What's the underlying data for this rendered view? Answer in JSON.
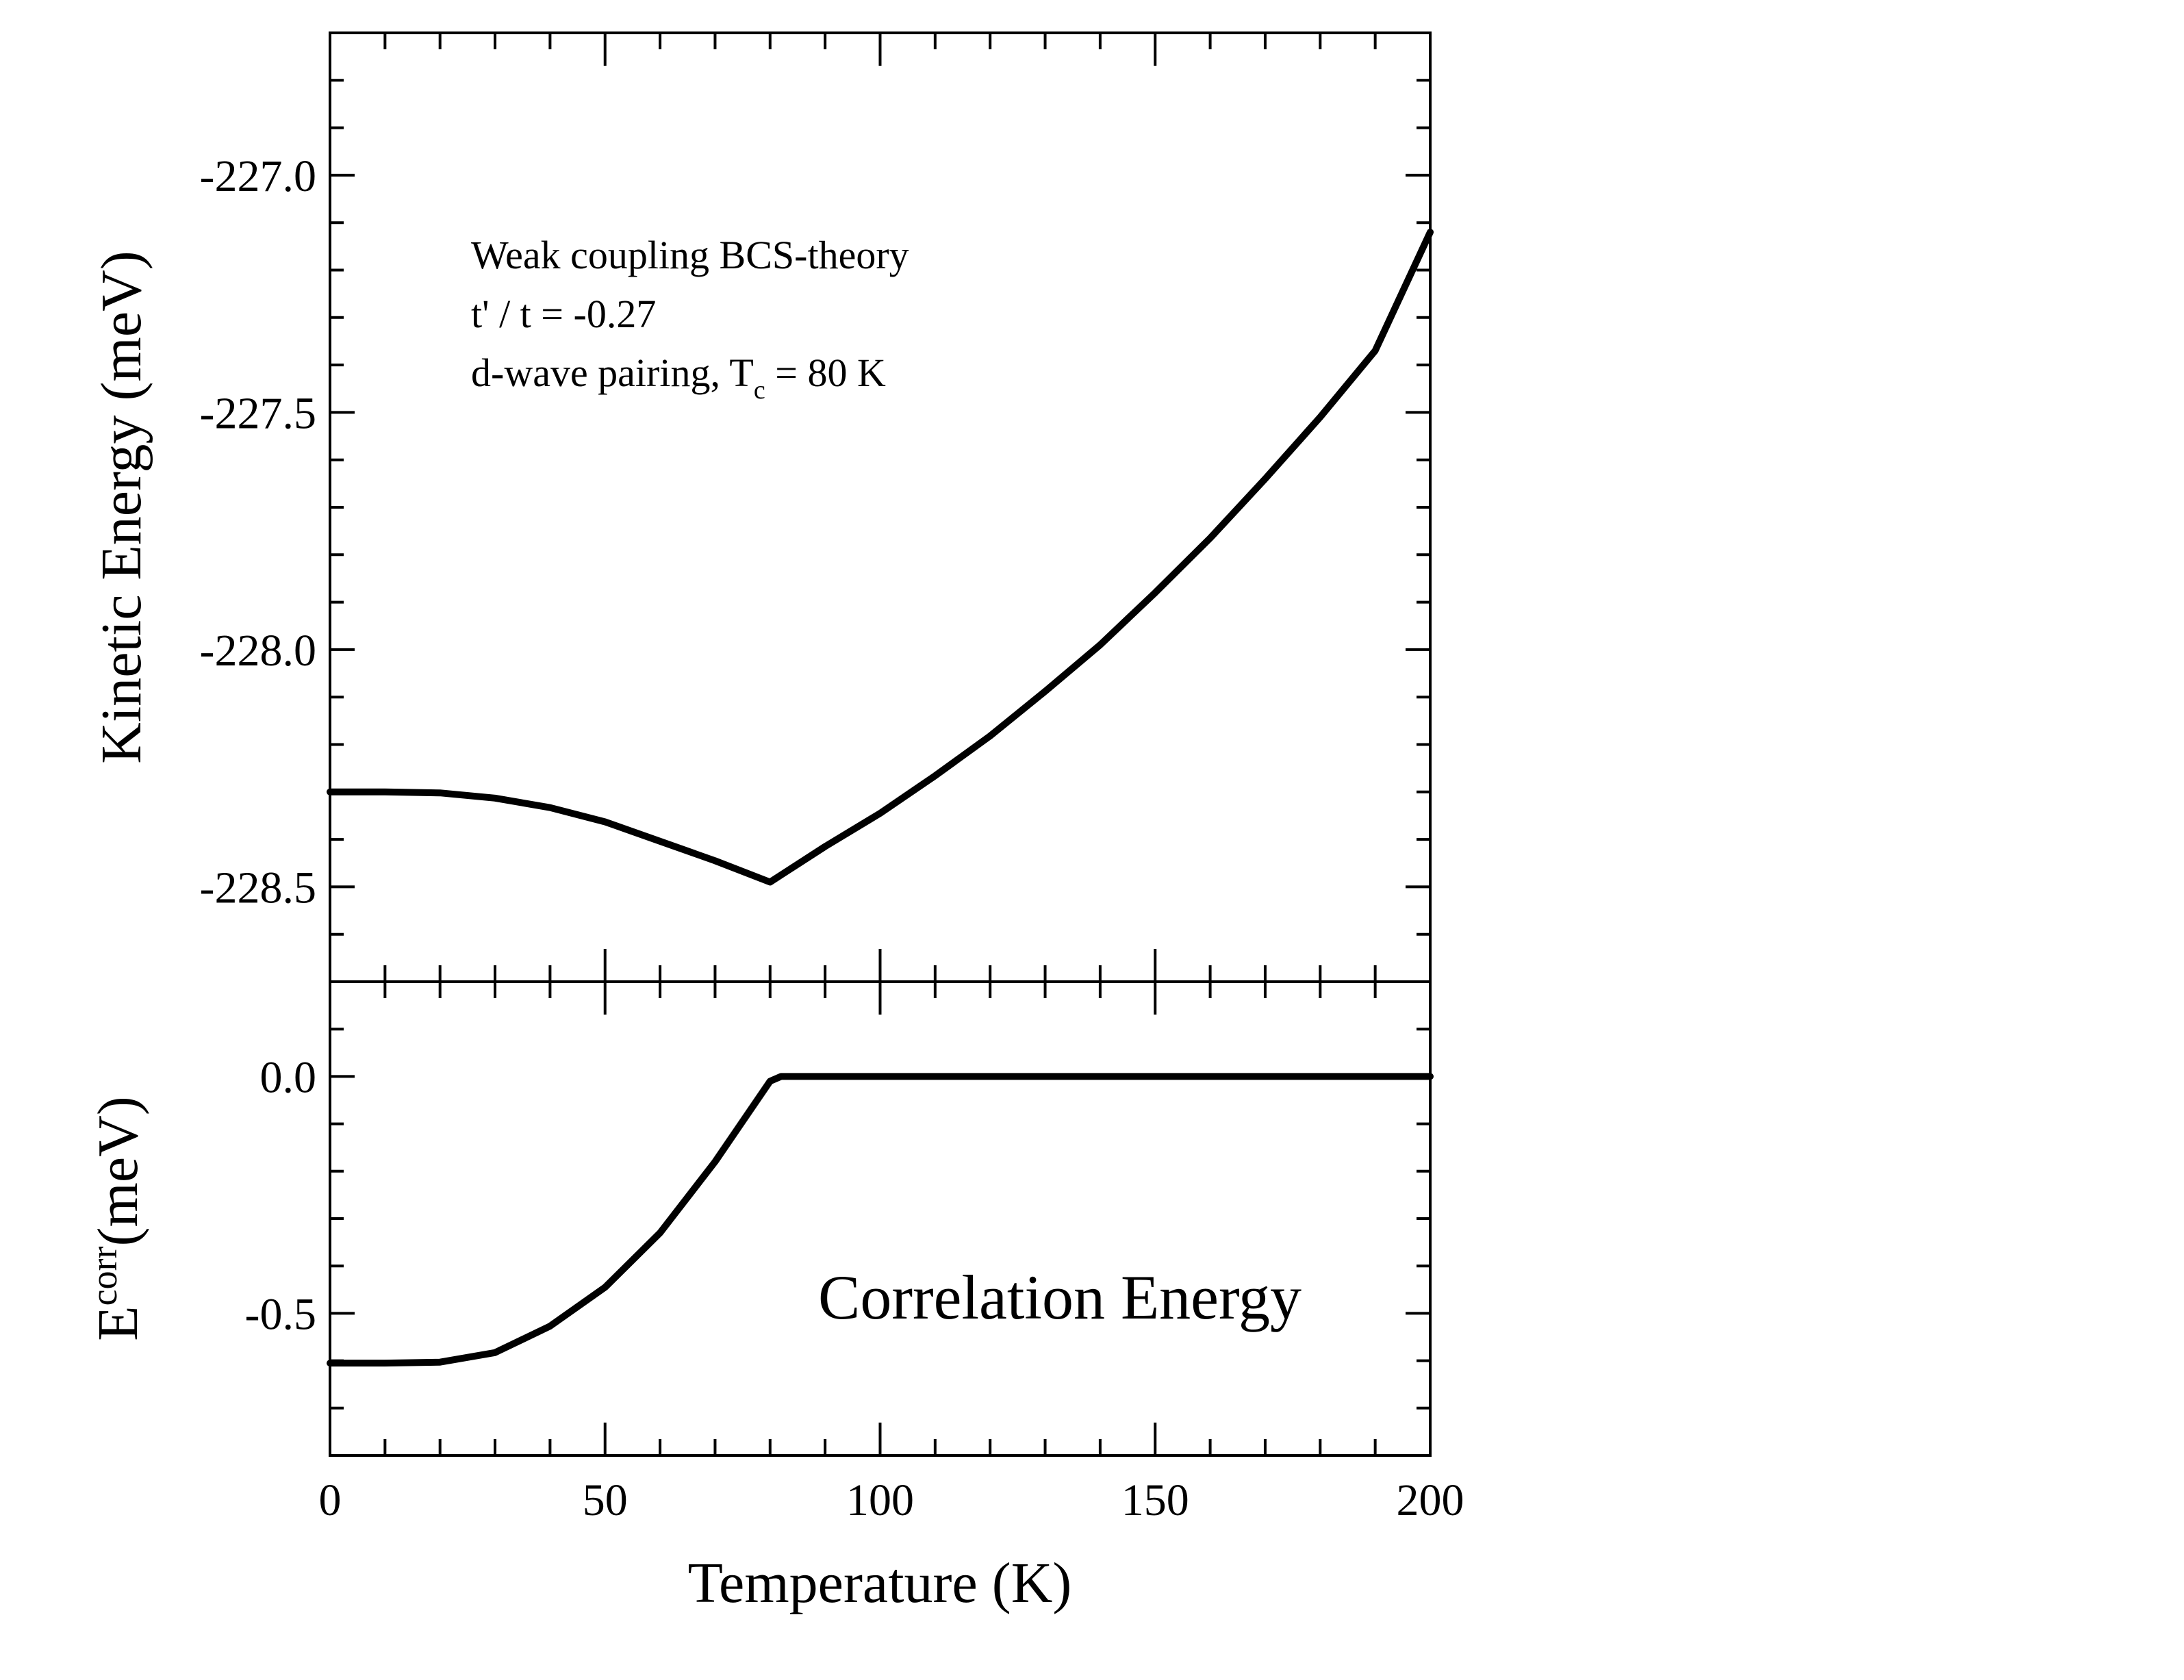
{
  "chart_data": [
    {
      "type": "line",
      "panel": "top",
      "title": "",
      "xlabel": "",
      "ylabel": "Kinetic Energy (meV)",
      "xlim": [
        0,
        200
      ],
      "ylim": [
        -228.7,
        -226.7
      ],
      "yticks": [
        -227.0,
        -227.5,
        -228.0,
        -228.5
      ],
      "ytick_labels": [
        "-227.0",
        "-227.5",
        "-228.0",
        "-228.5"
      ],
      "grid": false,
      "annotations": [
        "Weak coupling BCS-theory",
        "t' / t = -0.27",
        "d-wave pairing, T",
        "c",
        " = 80 K"
      ],
      "series": [
        {
          "name": "Kinetic Energy",
          "x": [
            0,
            10,
            20,
            30,
            40,
            50,
            60,
            70,
            80,
            90,
            100,
            110,
            120,
            130,
            140,
            150,
            160,
            170,
            180,
            190,
            200
          ],
          "y": [
            -228.3,
            -228.3,
            -228.302,
            -228.313,
            -228.333,
            -228.363,
            -228.404,
            -228.445,
            -228.49,
            -228.415,
            -228.345,
            -228.266,
            -228.182,
            -228.088,
            -227.99,
            -227.88,
            -227.765,
            -227.64,
            -227.51,
            -227.37,
            -227.12
          ]
        }
      ]
    },
    {
      "type": "line",
      "panel": "bottom",
      "title": "",
      "xlabel": "Temperature  (K)",
      "ylabel_main": "E",
      "ylabel_sup": "corr",
      "ylabel_rest": "(meV)",
      "xlim": [
        0,
        200
      ],
      "ylim": [
        -0.8,
        0.2
      ],
      "xticks": [
        0,
        50,
        100,
        150,
        200
      ],
      "xtick_labels": [
        "0",
        "50",
        "100",
        "150",
        "200"
      ],
      "yticks": [
        0.0,
        -0.5
      ],
      "ytick_labels": [
        "0.0",
        "-0.5"
      ],
      "grid": false,
      "annotations": [
        "Correlation Energy"
      ],
      "series": [
        {
          "name": "Correlation Energy",
          "x": [
            0,
            10,
            20,
            30,
            40,
            50,
            60,
            70,
            80,
            82,
            90,
            100,
            120,
            140,
            160,
            180,
            200
          ],
          "y": [
            -0.605,
            -0.605,
            -0.603,
            -0.583,
            -0.527,
            -0.445,
            -0.33,
            -0.18,
            -0.01,
            0.0,
            0.0,
            0.0,
            0.0,
            0.0,
            0.0,
            0.0,
            0.0
          ]
        }
      ]
    }
  ]
}
